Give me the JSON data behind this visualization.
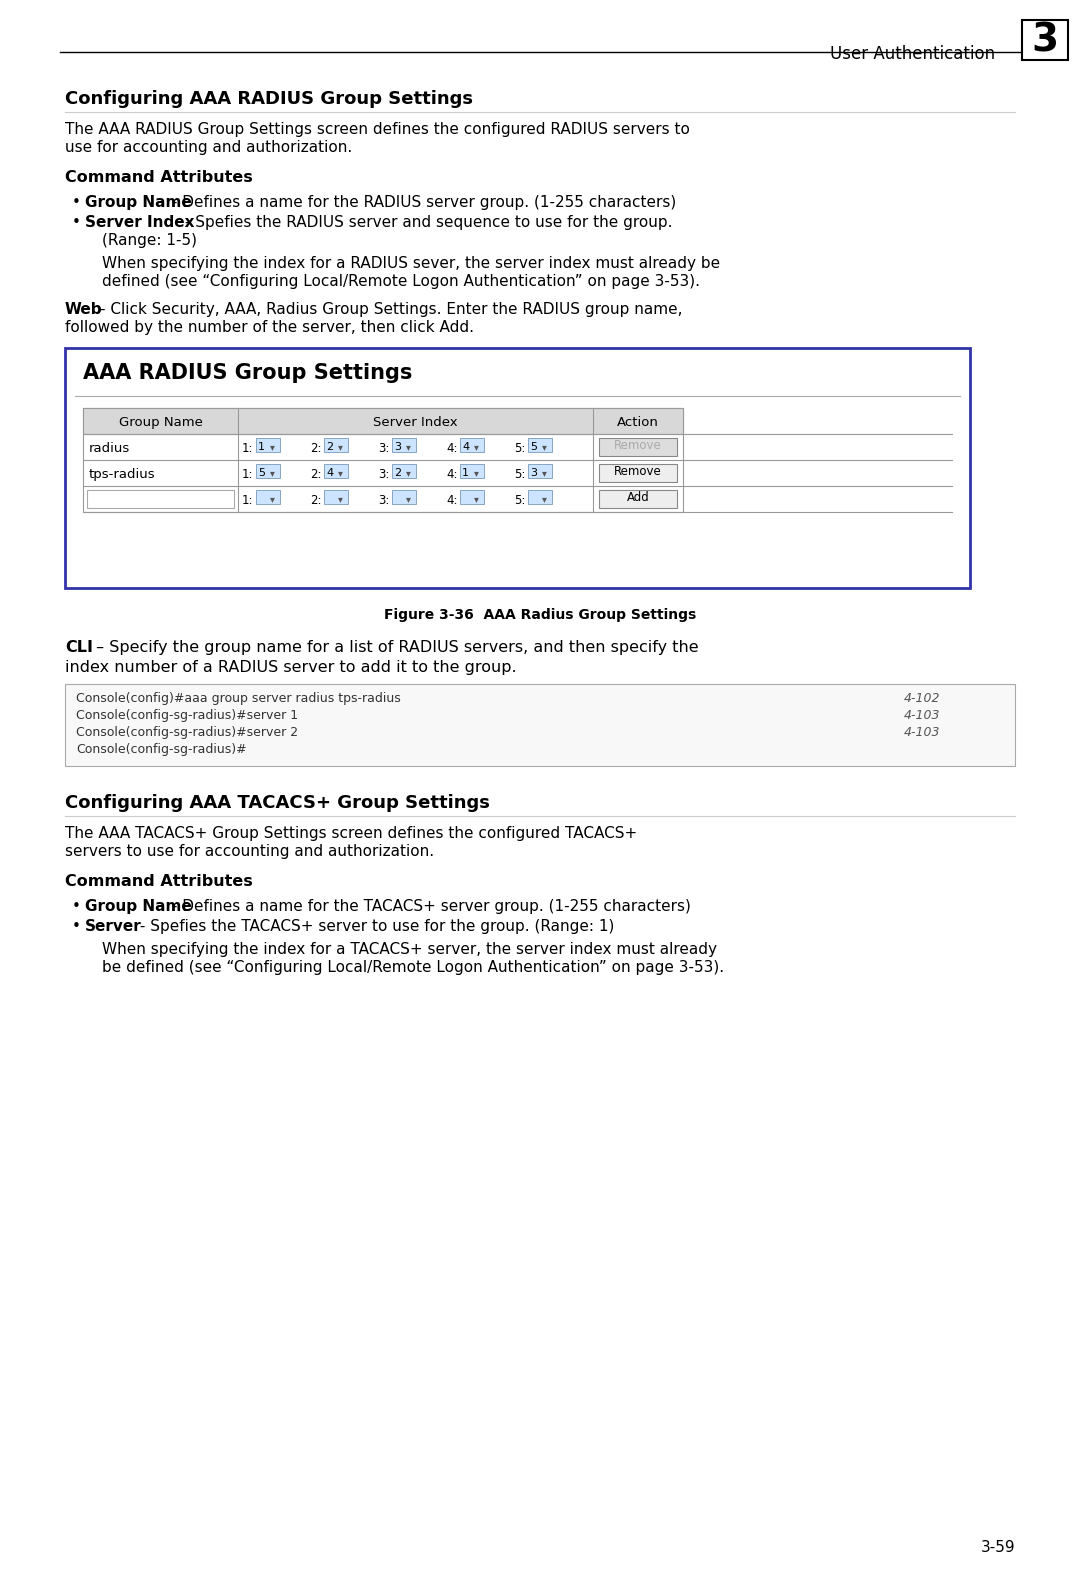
{
  "page_bg": "#ffffff",
  "header_text": "User Authentication",
  "header_number": "3",
  "section1_title": "Configuring AAA RADIUS Group Settings",
  "section1_intro_1": "The AAA RADIUS Group Settings screen defines the configured RADIUS servers to",
  "section1_intro_2": "use for accounting and authorization.",
  "cmd_attr_label": "Command Attributes",
  "bullet1_bold": "Group Name",
  "bullet1_rest": " - Defines a name for the RADIUS server group. (1-255 characters)",
  "bullet2_bold": "Server Index",
  "bullet2_rest": " - Spefies the RADIUS server and sequence to use for the group.",
  "bullet2_rest2": "(Range: 1-5)",
  "indent_text1_1": "When specifying the index for a RADIUS sever, the server index must already be",
  "indent_text1_2": "defined (see “Configuring Local/Remote Logon Authentication” on page 3-53).",
  "web_bold": "Web",
  "web_rest_1": " – Click Security, AAA, Radius Group Settings. Enter the RADIUS group name,",
  "web_rest_2": "followed by the number of the server, then click Add.",
  "figure_panel_title": "AAA RADIUS Group Settings",
  "table_headers": [
    "Group Name",
    "Server Index",
    "Action"
  ],
  "row1_name": "radius",
  "row1_vals": [
    "1",
    "2",
    "3",
    "4",
    "5"
  ],
  "row1_action": "Remove",
  "row1_action_enabled": false,
  "row2_name": "tps-radius",
  "row2_vals": [
    "5",
    "4",
    "2",
    "1",
    "3"
  ],
  "row2_action": "Remove",
  "row2_action_enabled": true,
  "row3_vals": [
    "",
    "",
    "",
    "",
    ""
  ],
  "row3_action": "Add",
  "figure_caption": "Figure 3-36  AAA Radius Group Settings",
  "cli_bold": "CLI",
  "cli_rest_1": " – Specify the group name for a list of RADIUS servers, and then specify the",
  "cli_rest_2": "index number of a RADIUS server to add it to the group.",
  "code_lines": [
    [
      "Console(config)#aaa group server radius tps-radius",
      "4-102"
    ],
    [
      "Console(config-sg-radius)#server 1",
      "4-103"
    ],
    [
      "Console(config-sg-radius)#server 2",
      "4-103"
    ],
    [
      "Console(config-sg-radius)#",
      ""
    ]
  ],
  "section2_title": "Configuring AAA TACACS+ Group Settings",
  "section2_intro_1": "The AAA TACACS+ Group Settings screen defines the configured TACACS+",
  "section2_intro_2": "servers to use for accounting and authorization.",
  "cmd_attr_label2": "Command Attributes",
  "bullet3_bold": "Group Name",
  "bullet3_rest": " - Defines a name for the TACACS+ server group. (1-255 characters)",
  "bullet4_bold": "Server",
  "bullet4_rest": " - Spefies the TACACS+ server to use for the group. (Range: 1)",
  "indent_text2_1": "When specifying the index for a TACACS+ server, the server index must already",
  "indent_text2_2": "be defined (see “Configuring Local/Remote Logon Authentication” on page 3-53).",
  "page_number": "3-59",
  "panel_border_color": "#3333aa",
  "code_bg": "#f8f8f8",
  "code_border": "#aaaaaa",
  "dropdown_bg": "#cce4ff",
  "dropdown_border": "#7799bb",
  "table_header_bg": "#d8d8d8",
  "table_border": "#999999"
}
